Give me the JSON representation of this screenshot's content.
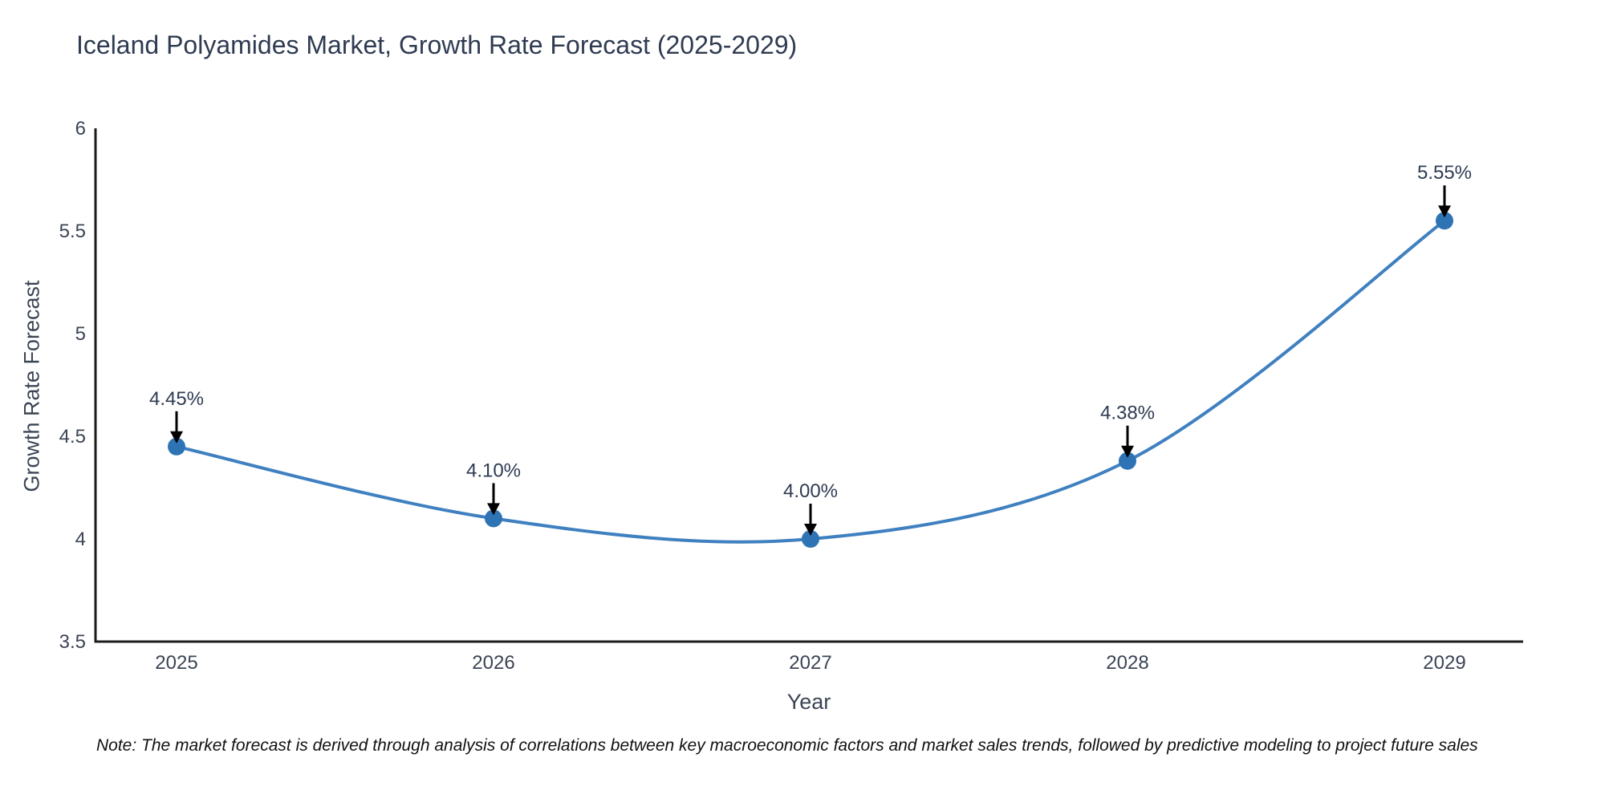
{
  "title": "Iceland Polyamides Market, Growth Rate Forecast (2025-2029)",
  "note": "Note: The market forecast is derived through analysis of correlations between key macroeconomic factors and market sales trends, followed by predictive modeling to project future sales",
  "chart_data": {
    "type": "line",
    "title": "Iceland Polyamides Market, Growth Rate Forecast (2025-2029)",
    "xlabel": "Year",
    "ylabel": "Growth Rate Forecast",
    "x": [
      "2025",
      "2026",
      "2027",
      "2028",
      "2029"
    ],
    "values": [
      4.45,
      4.1,
      4.0,
      4.38,
      5.55
    ],
    "point_labels": [
      "4.45%",
      "4.10%",
      "4.00%",
      "4.38%",
      "5.55%"
    ],
    "ylim": [
      3.5,
      6
    ],
    "yticks": [
      "3.5",
      "4",
      "4.5",
      "5",
      "5.5",
      "6"
    ],
    "ytick_values": [
      3.5,
      4,
      4.5,
      5,
      5.5,
      6
    ],
    "grid": false,
    "legend_position": "none",
    "line_smoothing": "spline",
    "annotation_style": "value label with black down-arrow above each marker",
    "colors": {
      "line": "#3f80c0",
      "marker": "#2e74b5",
      "axis": "#1c1c1c",
      "tick_text": "#3c4454",
      "annotation_text": "#2f3b52",
      "arrow": "#000000",
      "title_text": "#2f3b52",
      "note_text": "#111111",
      "background": "#ffffff"
    }
  }
}
